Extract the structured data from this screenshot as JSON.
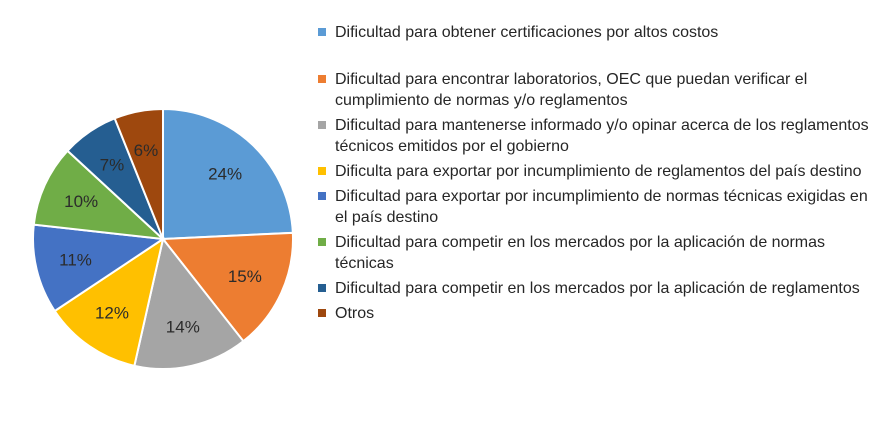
{
  "chart_data": {
    "type": "pie",
    "title": "",
    "slices": [
      {
        "label": "Dificultad para obtener certificaciones por altos costos",
        "value": 24,
        "display": "24%",
        "color": "#5B9BD5"
      },
      {
        "label": "Dificultad para encontrar laboratorios, OEC que puedan verificar el cumplimiento  de normas y/o reglamentos",
        "value": 15,
        "display": "15%",
        "color": "#ED7D31"
      },
      {
        "label": "Dificultad para mantenerse informado y/o opinar acerca de los reglamentos técnicos emitidos por el gobierno",
        "value": 14,
        "display": "14%",
        "color": "#A5A5A5"
      },
      {
        "label": "Dificulta para exportar por incumplimiento de reglamentos del país destino",
        "value": 12,
        "display": "12%",
        "color": "#FFC000"
      },
      {
        "label": "Dificultad para exportar por incumplimiento de normas técnicas exigidas en el país destino",
        "value": 11,
        "display": "11%",
        "color": "#4472C4"
      },
      {
        "label": "Dificultad para competir en los mercados por la aplicación de normas técnicas",
        "value": 10,
        "display": "10%",
        "color": "#70AD47"
      },
      {
        "label": "Dificultad para competir en los mercados por la aplicación de reglamentos",
        "value": 7,
        "display": "7%",
        "color": "#255E91"
      },
      {
        "label": "Otros",
        "value": 6,
        "display": "6%",
        "color": "#9E480E"
      }
    ],
    "start_angle_deg": 0,
    "direction": "clockwise",
    "legend_position": "right"
  }
}
